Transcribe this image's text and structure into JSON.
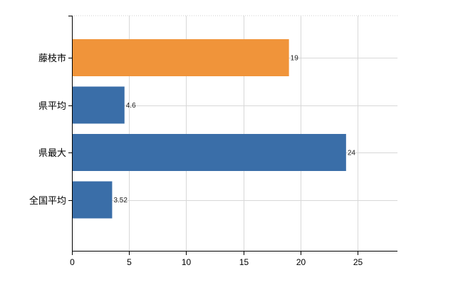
{
  "chart_data": {
    "type": "bar",
    "orientation": "horizontal",
    "title": "",
    "xlabel": "",
    "ylabel": "",
    "categories": [
      "藤枝市",
      "県平均",
      "県最大",
      "全国平均"
    ],
    "values": [
      19,
      4.6,
      24,
      3.52
    ],
    "data_labels": [
      "19",
      "4.6",
      "24",
      "3.52"
    ],
    "colors": [
      "#f0943a",
      "#3a6ea8",
      "#3a6ea8",
      "#3a6ea8"
    ],
    "xlim": [
      0,
      28.5
    ],
    "xticks": [
      0,
      5,
      10,
      15,
      20,
      25
    ],
    "xtick_labels": [
      "0",
      "5",
      "10",
      "15",
      "20",
      "25"
    ],
    "grid": true,
    "legend": "none"
  }
}
